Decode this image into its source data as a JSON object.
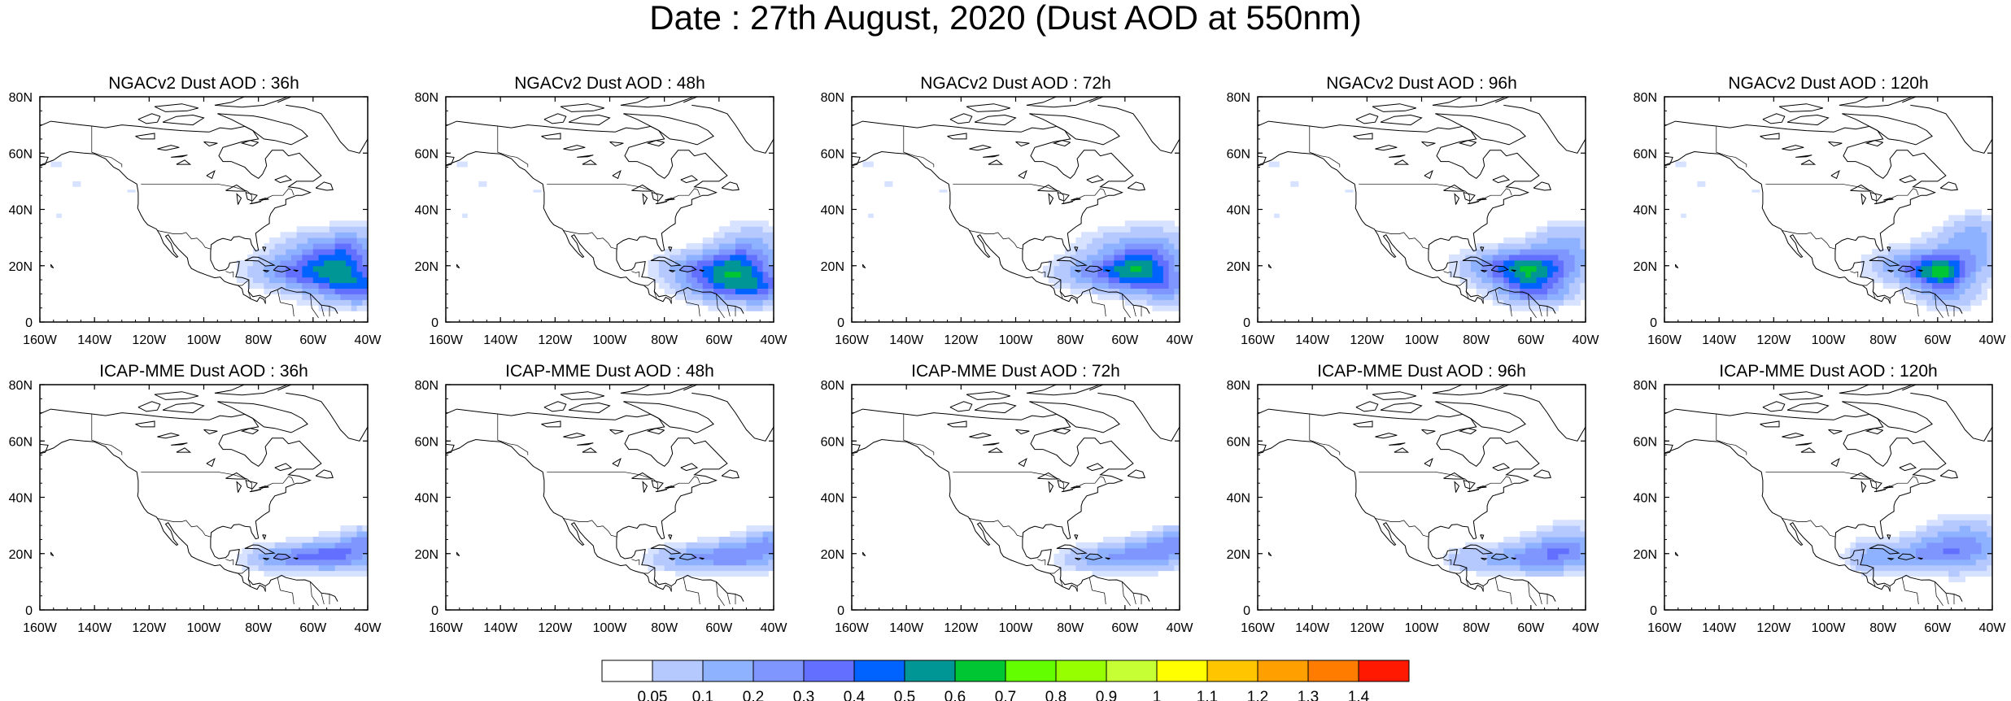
{
  "title": "Date : 27th August, 2020 (Dust AOD at 550nm)",
  "panels": [
    {
      "title": "NGACv2 Dust AOD : 36h",
      "model": "NGAC",
      "lead_h": 36
    },
    {
      "title": "NGACv2 Dust AOD : 48h",
      "model": "NGAC",
      "lead_h": 48
    },
    {
      "title": "NGACv2 Dust AOD : 72h",
      "model": "NGAC",
      "lead_h": 72
    },
    {
      "title": "NGACv2 Dust AOD : 96h",
      "model": "NGAC",
      "lead_h": 96
    },
    {
      "title": "NGACv2 Dust AOD : 120h",
      "model": "NGAC",
      "lead_h": 120
    },
    {
      "title": "ICAP-MME Dust AOD : 36h",
      "model": "ICAP",
      "lead_h": 36
    },
    {
      "title": "ICAP-MME Dust AOD : 48h",
      "model": "ICAP",
      "lead_h": 48
    },
    {
      "title": "ICAP-MME Dust AOD : 72h",
      "model": "ICAP",
      "lead_h": 72
    },
    {
      "title": "ICAP-MME Dust AOD : 96h",
      "model": "ICAP",
      "lead_h": 96
    },
    {
      "title": "ICAP-MME Dust AOD : 120h",
      "model": "ICAP",
      "lead_h": 120
    }
  ],
  "x_ticks": [
    "160W",
    "140W",
    "120W",
    "100W",
    "80W",
    "60W",
    "40W"
  ],
  "y_ticks": [
    "0",
    "20N",
    "40N",
    "60N",
    "80N"
  ],
  "lon_range": [
    -160,
    -40
  ],
  "lat_range": [
    0,
    80
  ],
  "colorbar": {
    "labels": [
      "0.05",
      "0.1",
      "0.2",
      "0.3",
      "0.4",
      "0.5",
      "0.6",
      "0.7",
      "0.8",
      "0.9",
      "1",
      "1.1",
      "1.2",
      "1.3",
      "1.4"
    ],
    "colors": [
      "#ffffff",
      "#d6e2ff",
      "#b5c9ff",
      "#8eb2ff",
      "#7f96ff",
      "#6370ff",
      "#0063ff",
      "#009696",
      "#00c633",
      "#63ff00",
      "#96ff00",
      "#c6ff33",
      "#ffff00",
      "#ffc600",
      "#ffa000",
      "#ff7c00",
      "#ff1900"
    ]
  }
}
